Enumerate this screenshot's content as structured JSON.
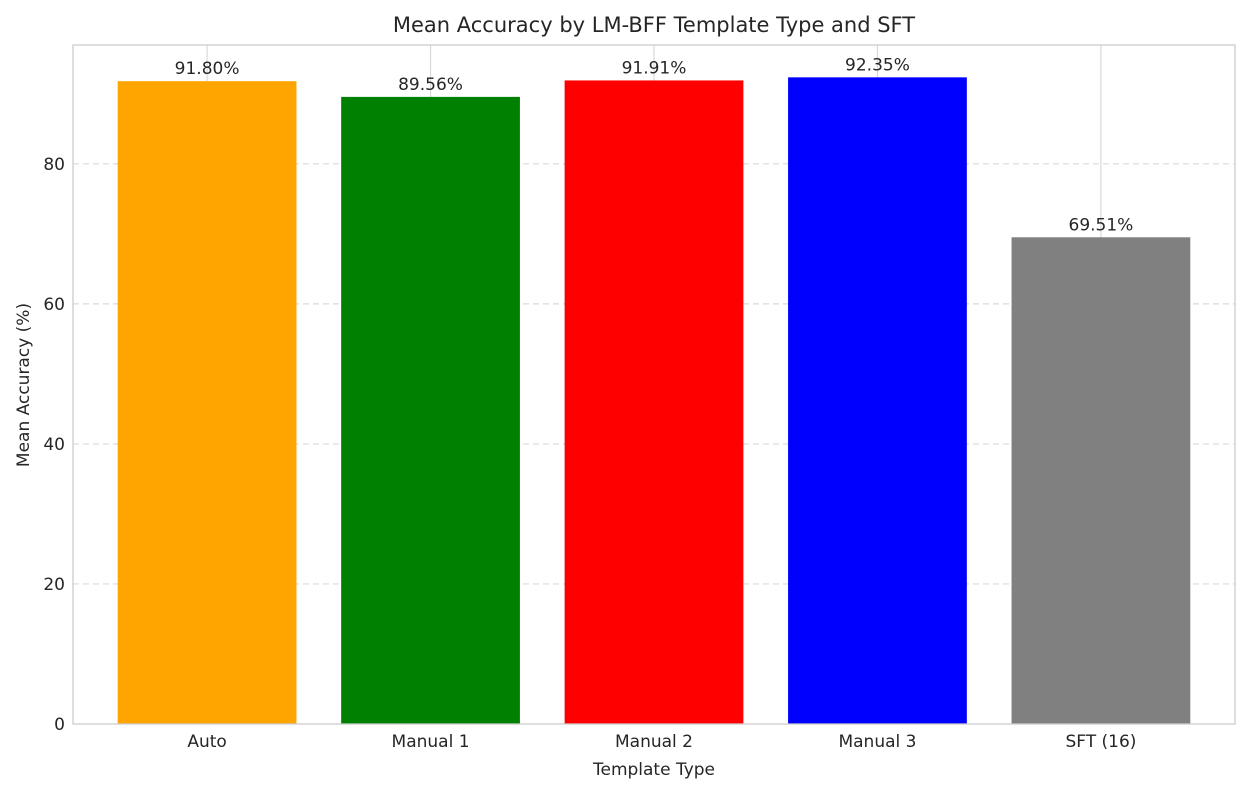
{
  "chart_data": {
    "type": "bar",
    "title": "Mean Accuracy by LM-BFF Template Type and SFT",
    "xlabel": "Template Type",
    "ylabel": "Mean Accuracy (%)",
    "categories": [
      "Auto",
      "Manual 1",
      "Manual 2",
      "Manual 3",
      "SFT (16)"
    ],
    "values": [
      91.8,
      89.56,
      91.91,
      92.35,
      69.51
    ],
    "value_labels": [
      "91.80%",
      "89.56%",
      "91.91%",
      "92.35%",
      "69.51%"
    ],
    "colors": [
      "#ffa500",
      "#008000",
      "#ff0000",
      "#0000ff",
      "#808080"
    ],
    "ylim": [
      0,
      96.97
    ],
    "yticks": [
      0,
      20,
      40,
      60,
      80
    ],
    "ytick_labels": [
      "0",
      "20",
      "40",
      "60",
      "80"
    ],
    "grid": {
      "y": "dashed",
      "x": "solid"
    },
    "legend": "none"
  }
}
